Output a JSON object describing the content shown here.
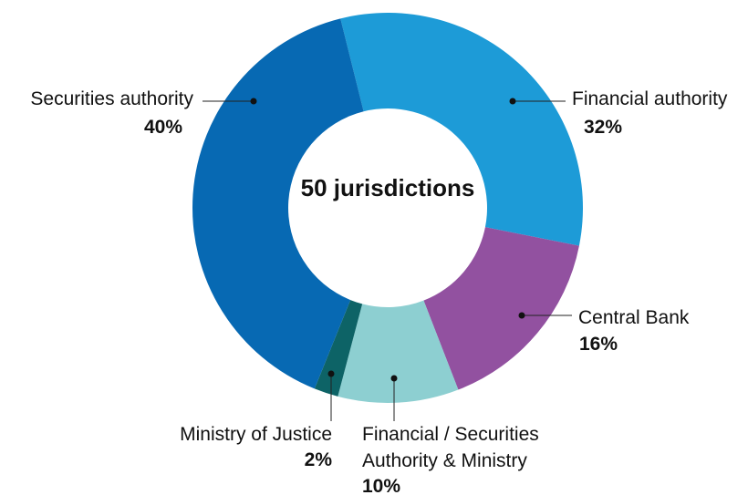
{
  "chart_data": {
    "type": "pie",
    "annotation": "50 jurisdictions",
    "categories": [
      "Financial authority",
      "Central Bank",
      "Financial / Securities Authority & Ministry",
      "Ministry of Justice",
      "Securities authority"
    ],
    "values": [
      32,
      16,
      10,
      2,
      40
    ],
    "value_labels": [
      "32%",
      "16%",
      "10%",
      "2%",
      "40%"
    ],
    "colors": [
      "#1d9bd7",
      "#9251a0",
      "#8dcfd1",
      "#0d6366",
      "#0769b3"
    ]
  }
}
